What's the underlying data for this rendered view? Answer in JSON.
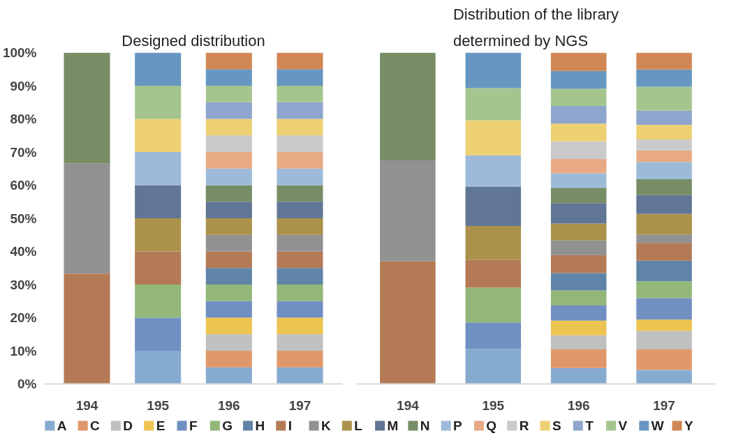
{
  "chart_data": [
    {
      "type": "bar",
      "title": "Designed distribution",
      "stacked": true,
      "categories": [
        "194",
        "195",
        "196",
        "197"
      ],
      "ylim": [
        0,
        100
      ],
      "yticks": [
        {
          "value": 0,
          "label": "0%"
        },
        {
          "value": 10,
          "label": "10%"
        },
        {
          "value": 20,
          "label": "20%"
        },
        {
          "value": 30,
          "label": "30%"
        },
        {
          "value": 40,
          "label": "40%"
        },
        {
          "value": 50,
          "label": "50%"
        },
        {
          "value": 60,
          "label": "60%"
        },
        {
          "value": 70,
          "label": "70%"
        },
        {
          "value": 80,
          "label": "80%"
        },
        {
          "value": 90,
          "label": "90%"
        },
        {
          "value": 100,
          "label": "100%"
        }
      ],
      "grid": false,
      "legend": "bottom",
      "series": [
        {
          "name": "A",
          "color": "#86abd1",
          "values": [
            null,
            10,
            5,
            5
          ]
        },
        {
          "name": "C",
          "color": "#e0986a",
          "values": [
            null,
            null,
            5,
            5
          ]
        },
        {
          "name": "D",
          "color": "#c0c0c0",
          "values": [
            null,
            null,
            5,
            5
          ]
        },
        {
          "name": "E",
          "color": "#ecc44f",
          "values": [
            null,
            null,
            5,
            5
          ]
        },
        {
          "name": "F",
          "color": "#7190c2",
          "values": [
            null,
            10,
            5,
            5
          ]
        },
        {
          "name": "G",
          "color": "#93b779",
          "values": [
            null,
            10,
            5,
            5
          ]
        },
        {
          "name": "H",
          "color": "#5f84a8",
          "values": [
            null,
            null,
            5,
            5
          ]
        },
        {
          "name": "I",
          "color": "#b37a55",
          "values": [
            33.3,
            10,
            5,
            5
          ]
        },
        {
          "name": "K",
          "color": "#919191",
          "values": [
            33.3,
            null,
            5,
            5
          ]
        },
        {
          "name": "L",
          "color": "#ab924b",
          "values": [
            null,
            10,
            5,
            5
          ]
        },
        {
          "name": "M",
          "color": "#617594",
          "values": [
            null,
            10,
            5,
            5
          ]
        },
        {
          "name": "N",
          "color": "#778d66",
          "values": [
            33.4,
            null,
            5,
            5
          ]
        },
        {
          "name": "P",
          "color": "#9dbbd9",
          "values": [
            null,
            10,
            5,
            5
          ]
        },
        {
          "name": "Q",
          "color": "#e7aa85",
          "values": [
            null,
            null,
            5,
            5
          ]
        },
        {
          "name": "R",
          "color": "#cacaca",
          "values": [
            null,
            null,
            5,
            5
          ]
        },
        {
          "name": "S",
          "color": "#edd072",
          "values": [
            null,
            10,
            5,
            5
          ]
        },
        {
          "name": "T",
          "color": "#8ea5cd",
          "values": [
            null,
            null,
            5,
            5
          ]
        },
        {
          "name": "V",
          "color": "#a5c58e",
          "values": [
            null,
            10,
            5,
            5
          ]
        },
        {
          "name": "W",
          "color": "#6797c1",
          "values": [
            null,
            10,
            5,
            5
          ]
        },
        {
          "name": "Y",
          "color": "#d18754",
          "values": [
            null,
            null,
            5,
            5
          ]
        }
      ]
    },
    {
      "type": "bar",
      "title": "Distribution of the library determined by NGS",
      "stacked": true,
      "categories": [
        "194",
        "195",
        "196",
        "197"
      ],
      "ylim": [
        0,
        100
      ],
      "tick_labels": "x",
      "grid": false,
      "legend": "bottom",
      "series": [
        {
          "name": "A",
          "color": "#86abd1",
          "values": [
            null,
            10.6,
            4.8,
            4.2
          ]
        },
        {
          "name": "C",
          "color": "#e0986a",
          "values": [
            null,
            null,
            5.6,
            6.2
          ]
        },
        {
          "name": "D",
          "color": "#c0c0c0",
          "values": [
            null,
            null,
            4.3,
            5.6
          ]
        },
        {
          "name": "E",
          "color": "#ecc44f",
          "values": [
            null,
            null,
            4.4,
            3.4
          ]
        },
        {
          "name": "F",
          "color": "#7190c2",
          "values": [
            null,
            8.0,
            4.6,
            6.5
          ]
        },
        {
          "name": "G",
          "color": "#93b779",
          "values": [
            null,
            10.5,
            4.5,
            5.1
          ]
        },
        {
          "name": "H",
          "color": "#5f84a8",
          "values": [
            null,
            null,
            5.3,
            6.2
          ]
        },
        {
          "name": "I",
          "color": "#b37a55",
          "values": [
            37,
            8.3,
            5.4,
            5.4
          ]
        },
        {
          "name": "K",
          "color": "#919191",
          "values": [
            30.5,
            null,
            4.4,
            2.5
          ]
        },
        {
          "name": "L",
          "color": "#ab924b",
          "values": [
            null,
            10.3,
            5.1,
            6.2
          ]
        },
        {
          "name": "M",
          "color": "#617594",
          "values": [
            null,
            11.9,
            6.2,
            5.7
          ]
        },
        {
          "name": "N",
          "color": "#778d66",
          "values": [
            32.5,
            null,
            4.6,
            4.8
          ]
        },
        {
          "name": "P",
          "color": "#9dbbd9",
          "values": [
            null,
            9.4,
            4.4,
            5.2
          ]
        },
        {
          "name": "Q",
          "color": "#e7aa85",
          "values": [
            null,
            null,
            4.3,
            3.5
          ]
        },
        {
          "name": "R",
          "color": "#cacaca",
          "values": [
            null,
            null,
            5.3,
            3.3
          ]
        },
        {
          "name": "S",
          "color": "#edd072",
          "values": [
            null,
            10.6,
            5.4,
            4.4
          ]
        },
        {
          "name": "T",
          "color": "#8ea5cd",
          "values": [
            null,
            null,
            5.3,
            4.3
          ]
        },
        {
          "name": "V",
          "color": "#a5c58e",
          "values": [
            null,
            9.7,
            5.2,
            7.2
          ]
        },
        {
          "name": "W",
          "color": "#6797c1",
          "values": [
            null,
            10.7,
            5.4,
            5.2
          ]
        },
        {
          "name": "Y",
          "color": "#d18754",
          "values": [
            null,
            null,
            5.5,
            5.1
          ]
        }
      ]
    }
  ]
}
